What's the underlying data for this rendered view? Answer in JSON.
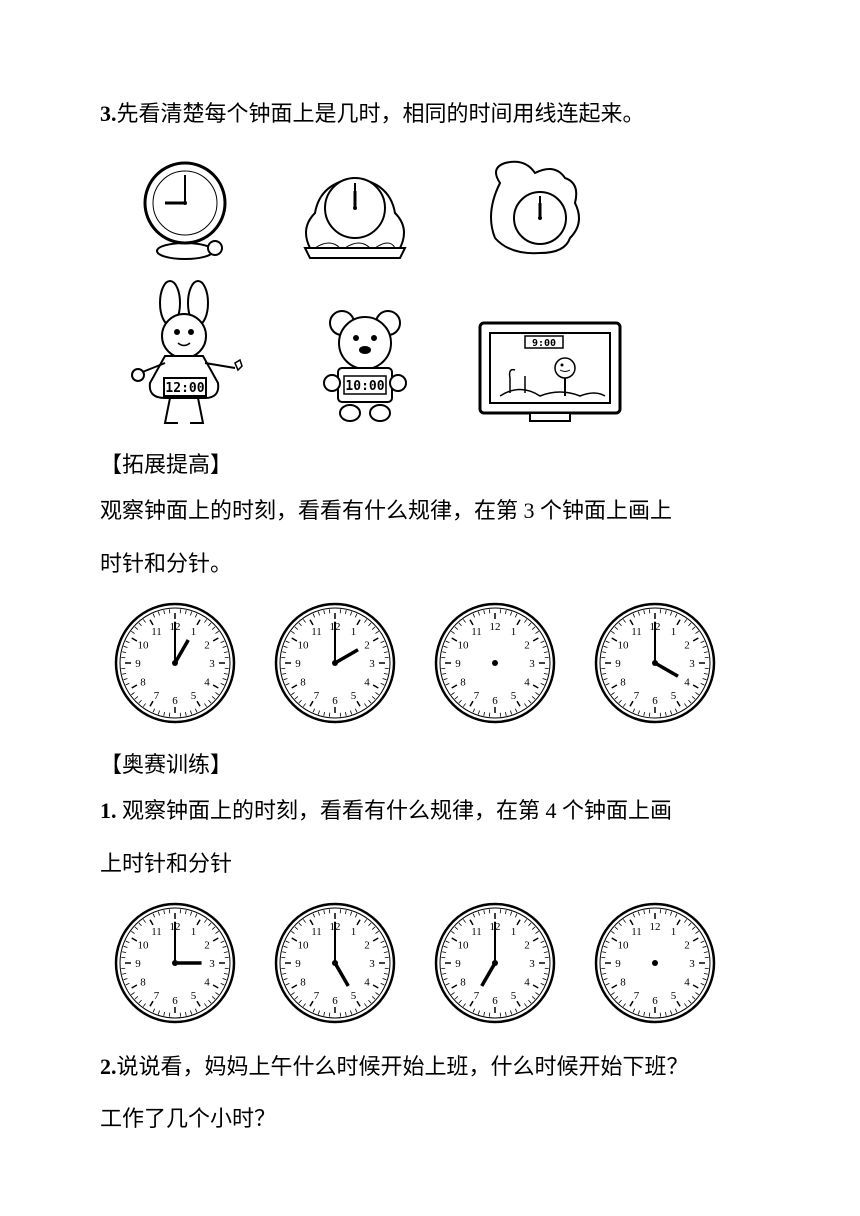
{
  "q3": {
    "number": "3.",
    "text": "先看清楚每个钟面上是几时，相同的时间用线连起来。"
  },
  "clock_images_row1": {
    "clock1": {
      "time": "9:00",
      "hour": 9,
      "minute": 0
    },
    "clock2": {
      "time": "12:00",
      "hour": 12,
      "minute": 0
    },
    "clock3": {
      "time": "12:00",
      "hour": 12,
      "minute": 0
    }
  },
  "digital_row": {
    "rabbit_time": "12:00",
    "bear_time": "10:00",
    "tv_time": "9:00"
  },
  "section1": {
    "title": "【拓展提高】",
    "line1": "观察钟面上的时刻，看看有什么规律，在第 3 个钟面上画上",
    "line2": "时针和分针。"
  },
  "clocks_section1": {
    "clock1": {
      "hour": 1,
      "minute": 0,
      "show_hands": true
    },
    "clock2": {
      "hour": 2,
      "minute": 0,
      "show_hands": true
    },
    "clock3": {
      "hour": 0,
      "minute": 0,
      "show_hands": false
    },
    "clock4": {
      "hour": 4,
      "minute": 0,
      "show_hands": true
    }
  },
  "section2": {
    "title": "【奥赛训练】",
    "q1_num": "1.",
    "q1_line1": " 观察钟面上的时刻，看看有什么规律，在第 4 个钟面上画",
    "q1_line2": "上时针和分针"
  },
  "clocks_section2": {
    "clock1": {
      "hour": 3,
      "minute": 0,
      "show_hands": true
    },
    "clock2": {
      "hour": 5,
      "minute": 0,
      "show_hands": true
    },
    "clock3": {
      "hour": 7,
      "minute": 0,
      "show_hands": true
    },
    "clock4": {
      "hour": 0,
      "minute": 0,
      "show_hands": false
    }
  },
  "q2": {
    "number": "2.",
    "line1": "说说看，妈妈上午什么时候开始上班，什么时候开始下班？",
    "line2": "工作了几个小时？"
  },
  "clock_style": {
    "size": 130,
    "border_width": 3,
    "tick_color": "#000000",
    "hand_color": "#000000",
    "face_color": "#ffffff"
  }
}
